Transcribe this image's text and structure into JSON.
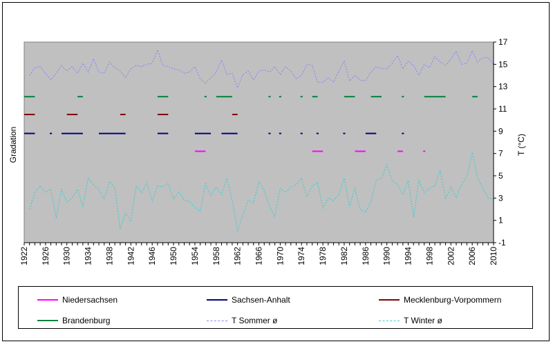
{
  "chart_data": {
    "type": "line",
    "title": "",
    "xlabel": "",
    "ylabel_left": "Gradation",
    "ylabel_right": "T (°C)",
    "xlim": [
      1922,
      2010
    ],
    "ylim_right": [
      -1,
      17
    ],
    "x_ticks": [
      1922,
      1926,
      1930,
      1934,
      1938,
      1942,
      1946,
      1950,
      1954,
      1958,
      1962,
      1966,
      1970,
      1974,
      1978,
      1982,
      1986,
      1990,
      1994,
      1998,
      2002,
      2006,
      2010
    ],
    "y_ticks_right": [
      -1,
      1,
      3,
      5,
      7,
      9,
      11,
      13,
      15,
      17
    ],
    "grid": false,
    "legend_position": "bottom",
    "plot_background": "#c0c0c0",
    "series": [
      {
        "name": "Niedersachsen",
        "kind": "segments",
        "color": "#ff00ff",
        "level": 7.2,
        "segments": [
          [
            1954,
            1956
          ],
          [
            1976,
            1978
          ],
          [
            1984,
            1986
          ],
          [
            1992,
            1993
          ],
          [
            1996.8,
            1997.2
          ]
        ]
      },
      {
        "name": "Sachsen-Anhalt",
        "kind": "segments",
        "color": "#000080",
        "level": 8.8,
        "segments": [
          [
            1922,
            1924
          ],
          [
            1926.8,
            1927.2
          ],
          [
            1929,
            1933
          ],
          [
            1936,
            1941
          ],
          [
            1947,
            1949
          ],
          [
            1954,
            1957
          ],
          [
            1959,
            1962
          ],
          [
            1967.8,
            1968.2
          ],
          [
            1969.8,
            1970.2
          ],
          [
            1973.8,
            1974.2
          ],
          [
            1976.8,
            1977.2
          ],
          [
            1981.8,
            1982.2
          ],
          [
            1986,
            1988
          ],
          [
            1992.8,
            1993.2
          ]
        ]
      },
      {
        "name": "Mecklenburg-Vorpommern",
        "kind": "segments",
        "color": "#800000",
        "level": 10.5,
        "segments": [
          [
            1922,
            1924
          ],
          [
            1930,
            1932
          ],
          [
            1940,
            1941
          ],
          [
            1947,
            1949
          ],
          [
            1961,
            1962
          ]
        ]
      },
      {
        "name": "Brandenburg",
        "kind": "segments",
        "color": "#008040",
        "level": 12.1,
        "segments": [
          [
            1922,
            1924
          ],
          [
            1932,
            1933
          ],
          [
            1947,
            1949
          ],
          [
            1955.8,
            1956.2
          ],
          [
            1958,
            1961
          ],
          [
            1967.8,
            1968.2
          ],
          [
            1969.8,
            1970.2
          ],
          [
            1973.8,
            1974.2
          ],
          [
            1976,
            1977
          ],
          [
            1982,
            1984
          ],
          [
            1987,
            1989
          ],
          [
            1992.8,
            1993.2
          ],
          [
            1997,
            2001
          ],
          [
            2006,
            2007
          ]
        ]
      },
      {
        "name": "T Sommer ø",
        "kind": "line",
        "color": "#8080ff",
        "style": "dashed",
        "x": [
          1923,
          1924,
          1925,
          1926,
          1927,
          1928,
          1929,
          1930,
          1931,
          1932,
          1933,
          1934,
          1935,
          1936,
          1937,
          1938,
          1939,
          1940,
          1941,
          1942,
          1943,
          1944,
          1945,
          1946,
          1947,
          1948,
          1949,
          1950,
          1951,
          1952,
          1953,
          1954,
          1955,
          1956,
          1957,
          1958,
          1959,
          1960,
          1961,
          1962,
          1963,
          1964,
          1965,
          1966,
          1967,
          1968,
          1969,
          1970,
          1971,
          1972,
          1973,
          1974,
          1975,
          1976,
          1977,
          1978,
          1979,
          1980,
          1981,
          1982,
          1983,
          1984,
          1985,
          1986,
          1987,
          1988,
          1989,
          1990,
          1991,
          1992,
          1993,
          1994,
          1995,
          1996,
          1997,
          1998,
          1999,
          2000,
          2001,
          2002,
          2003,
          2004,
          2005,
          2006,
          2007,
          2008,
          2009,
          2010
        ],
        "y": [
          14.0,
          14.7,
          14.8,
          14.2,
          13.6,
          14.2,
          14.9,
          14.4,
          14.8,
          14.2,
          15.1,
          14.3,
          15.5,
          14.3,
          14.2,
          15.2,
          14.7,
          14.4,
          13.8,
          14.6,
          14.9,
          14.8,
          15.0,
          15.1,
          16.3,
          14.9,
          14.8,
          14.6,
          14.5,
          14.2,
          14.3,
          14.8,
          13.7,
          13.3,
          13.8,
          14.3,
          15.4,
          14.1,
          14.2,
          12.9,
          14.1,
          14.4,
          13.6,
          14.4,
          14.5,
          14.3,
          14.8,
          14.1,
          14.8,
          14.4,
          13.7,
          14.0,
          15.0,
          14.9,
          13.4,
          13.4,
          13.8,
          13.4,
          14.4,
          15.3,
          13.5,
          14.0,
          13.6,
          13.5,
          14.3,
          14.8,
          14.6,
          14.6,
          15.1,
          15.8,
          14.6,
          15.3,
          14.9,
          14.0,
          15.0,
          14.7,
          15.7,
          15.2,
          14.9,
          15.5,
          16.2,
          15.0,
          15.1,
          16.2,
          15.2,
          15.6,
          15.6,
          15.0
        ]
      },
      {
        "name": "T Winter ø",
        "kind": "line",
        "color": "#33cccc",
        "style": "dashed",
        "x": [
          1923,
          1924,
          1925,
          1926,
          1927,
          1928,
          1929,
          1930,
          1931,
          1932,
          1933,
          1934,
          1935,
          1936,
          1937,
          1938,
          1939,
          1940,
          1941,
          1942,
          1943,
          1944,
          1945,
          1946,
          1947,
          1948,
          1949,
          1950,
          1951,
          1952,
          1953,
          1954,
          1955,
          1956,
          1957,
          1958,
          1959,
          1960,
          1961,
          1962,
          1963,
          1964,
          1965,
          1966,
          1967,
          1968,
          1969,
          1970,
          1971,
          1972,
          1973,
          1974,
          1975,
          1976,
          1977,
          1978,
          1979,
          1980,
          1981,
          1982,
          1983,
          1984,
          1985,
          1986,
          1987,
          1988,
          1989,
          1990,
          1991,
          1992,
          1993,
          1994,
          1995,
          1996,
          1997,
          1998,
          1999,
          2000,
          2001,
          2002,
          2003,
          2004,
          2005,
          2006,
          2007,
          2008,
          2009,
          2010
        ],
        "y": [
          2.0,
          3.5,
          4.1,
          3.5,
          3.8,
          1.2,
          3.8,
          2.6,
          3.0,
          3.8,
          2.2,
          4.8,
          4.2,
          3.8,
          2.9,
          4.5,
          3.9,
          0.2,
          1.7,
          0.9,
          4.1,
          3.5,
          4.4,
          2.7,
          4.1,
          4.0,
          4.3,
          2.9,
          3.6,
          2.8,
          2.7,
          2.2,
          1.8,
          4.3,
          3.2,
          4.0,
          3.3,
          4.8,
          2.8,
          0.0,
          1.5,
          2.8,
          2.6,
          4.5,
          3.7,
          2.3,
          1.3,
          3.9,
          3.5,
          4.0,
          4.2,
          4.8,
          3.1,
          4.1,
          4.4,
          2.1,
          3.0,
          2.8,
          3.3,
          4.8,
          2.2,
          3.9,
          2.0,
          1.7,
          2.7,
          4.6,
          4.8,
          6.0,
          4.6,
          4.2,
          3.3,
          4.6,
          1.3,
          4.6,
          3.5,
          3.9,
          4.1,
          5.5,
          2.9,
          4.0,
          3.0,
          4.2,
          4.9,
          7.1,
          4.8,
          3.9,
          3.0,
          2.9
        ]
      }
    ]
  },
  "legend": {
    "niedersachsen": "Niedersachsen",
    "sachsen_anhalt": "Sachsen-Anhalt",
    "mecklenburg": "Mecklenburg-Vorpommern",
    "brandenburg": "Brandenburg",
    "t_sommer": "T Sommer ø",
    "t_winter": "T Winter ø"
  }
}
